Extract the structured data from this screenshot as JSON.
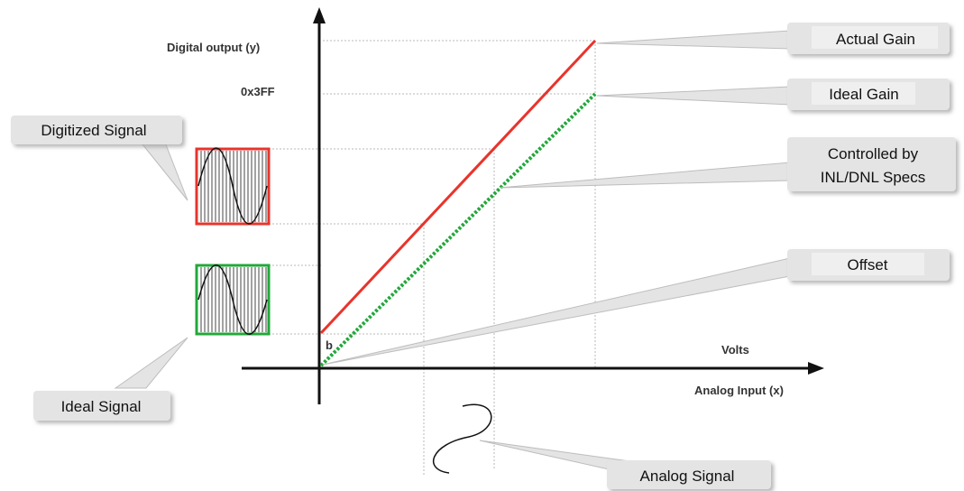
{
  "axes": {
    "y_label": "Digital output (y)",
    "y_max_label": "0x3FF",
    "x_unit_label": "Volts",
    "x_label": "Analog Input (x)",
    "offset_point_label": "b"
  },
  "callouts": {
    "actual_gain": "Actual Gain",
    "ideal_gain": "Ideal Gain",
    "controlled_line1": "Controlled by",
    "controlled_line2": "INL/DNL Specs",
    "offset": "Offset",
    "digitized_signal": "Digitized Signal",
    "ideal_signal": "Ideal Signal",
    "analog_signal": "Analog Signal"
  },
  "colors": {
    "actual_gain_line": "#e8342c",
    "ideal_gain_line": "#22a83a",
    "digitized_box": "#e8342c",
    "ideal_box": "#22a83a",
    "callout_fill": "#e4e4e4",
    "axis": "#111111",
    "guide_line": "#b8b8b8"
  }
}
